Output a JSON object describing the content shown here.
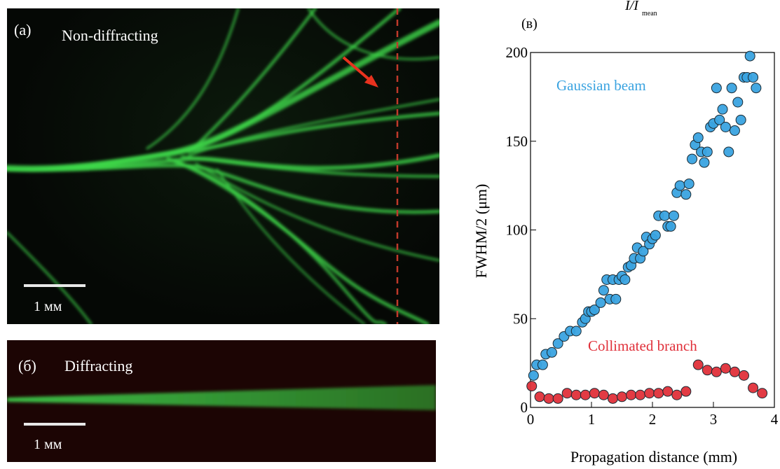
{
  "panel_a": {
    "letter": "(a)",
    "title": "Non-diffracting",
    "scale_label": "1 мм"
  },
  "panel_b": {
    "letter": "(б)",
    "title": "Diffracting",
    "scale_label": "1 мм"
  },
  "colors": {
    "filament": "#3fd84a",
    "arrow": "#e8321e",
    "dashed_line": "#c0392b",
    "gaussian": "#3aa3e0",
    "collimated": "#e0303a",
    "panel_b_bg": "#1c0504"
  },
  "chart_data": {
    "type": "scatter",
    "panel_letter": "(в)",
    "top_label": "I/I",
    "top_label_sub": "mean",
    "xlabel": "Propagation distance (mm)",
    "ylabel": "FWHM/2 (μm)",
    "xlim": [
      0,
      4
    ],
    "ylim": [
      0,
      200
    ],
    "xticks": [
      "0",
      "1",
      "2",
      "3",
      "4"
    ],
    "yticks": [
      "0",
      "50",
      "100",
      "150",
      "200"
    ],
    "grid": false,
    "annotations": [
      "Gaussian beam",
      "Collimated branch"
    ],
    "series": [
      {
        "name": "Gaussian beam",
        "color": "#3aa3e0",
        "x": [
          0.05,
          0.1,
          0.2,
          0.25,
          0.35,
          0.45,
          0.55,
          0.65,
          0.75,
          0.85,
          0.9,
          0.95,
          1.0,
          1.05,
          1.15,
          1.2,
          1.25,
          1.3,
          1.35,
          1.4,
          1.45,
          1.5,
          1.55,
          1.6,
          1.65,
          1.7,
          1.75,
          1.8,
          1.85,
          1.9,
          1.95,
          2.0,
          2.05,
          2.1,
          2.2,
          2.25,
          2.3,
          2.35,
          2.4,
          2.45,
          2.55,
          2.6,
          2.65,
          2.7,
          2.75,
          2.8,
          2.85,
          2.9,
          2.95,
          3.0,
          3.05,
          3.1,
          3.15,
          3.2,
          3.25,
          3.3,
          3.35,
          3.4,
          3.45,
          3.5,
          3.55,
          3.6,
          3.65,
          3.7
        ],
        "y": [
          18,
          24,
          24,
          30,
          31,
          36,
          40,
          43,
          43,
          48,
          50,
          54,
          54,
          55,
          59,
          66,
          72,
          61,
          72,
          61,
          72,
          74,
          72,
          79,
          80,
          84,
          90,
          84,
          88,
          96,
          92,
          95,
          97,
          108,
          108,
          102,
          102,
          108,
          121,
          125,
          120,
          126,
          140,
          148,
          152,
          144,
          138,
          144,
          158,
          160,
          180,
          162,
          168,
          158,
          144,
          180,
          156,
          172,
          162,
          186,
          186,
          198,
          186,
          180
        ],
        "y_extra": []
      },
      {
        "name": "Collimated branch",
        "color": "#e0303a",
        "x": [
          0.02,
          0.15,
          0.3,
          0.45,
          0.6,
          0.75,
          0.9,
          1.05,
          1.2,
          1.35,
          1.5,
          1.65,
          1.8,
          1.95,
          2.1,
          2.25,
          2.4,
          2.55,
          2.75,
          2.9,
          3.05,
          3.2,
          3.35,
          3.5,
          3.65,
          3.8
        ],
        "y": [
          12,
          6,
          5,
          5,
          8,
          7,
          7,
          8,
          7,
          5,
          6,
          7,
          7,
          8,
          8,
          9,
          7,
          9,
          24,
          21,
          20,
          22,
          20,
          18,
          11,
          8
        ]
      }
    ]
  }
}
